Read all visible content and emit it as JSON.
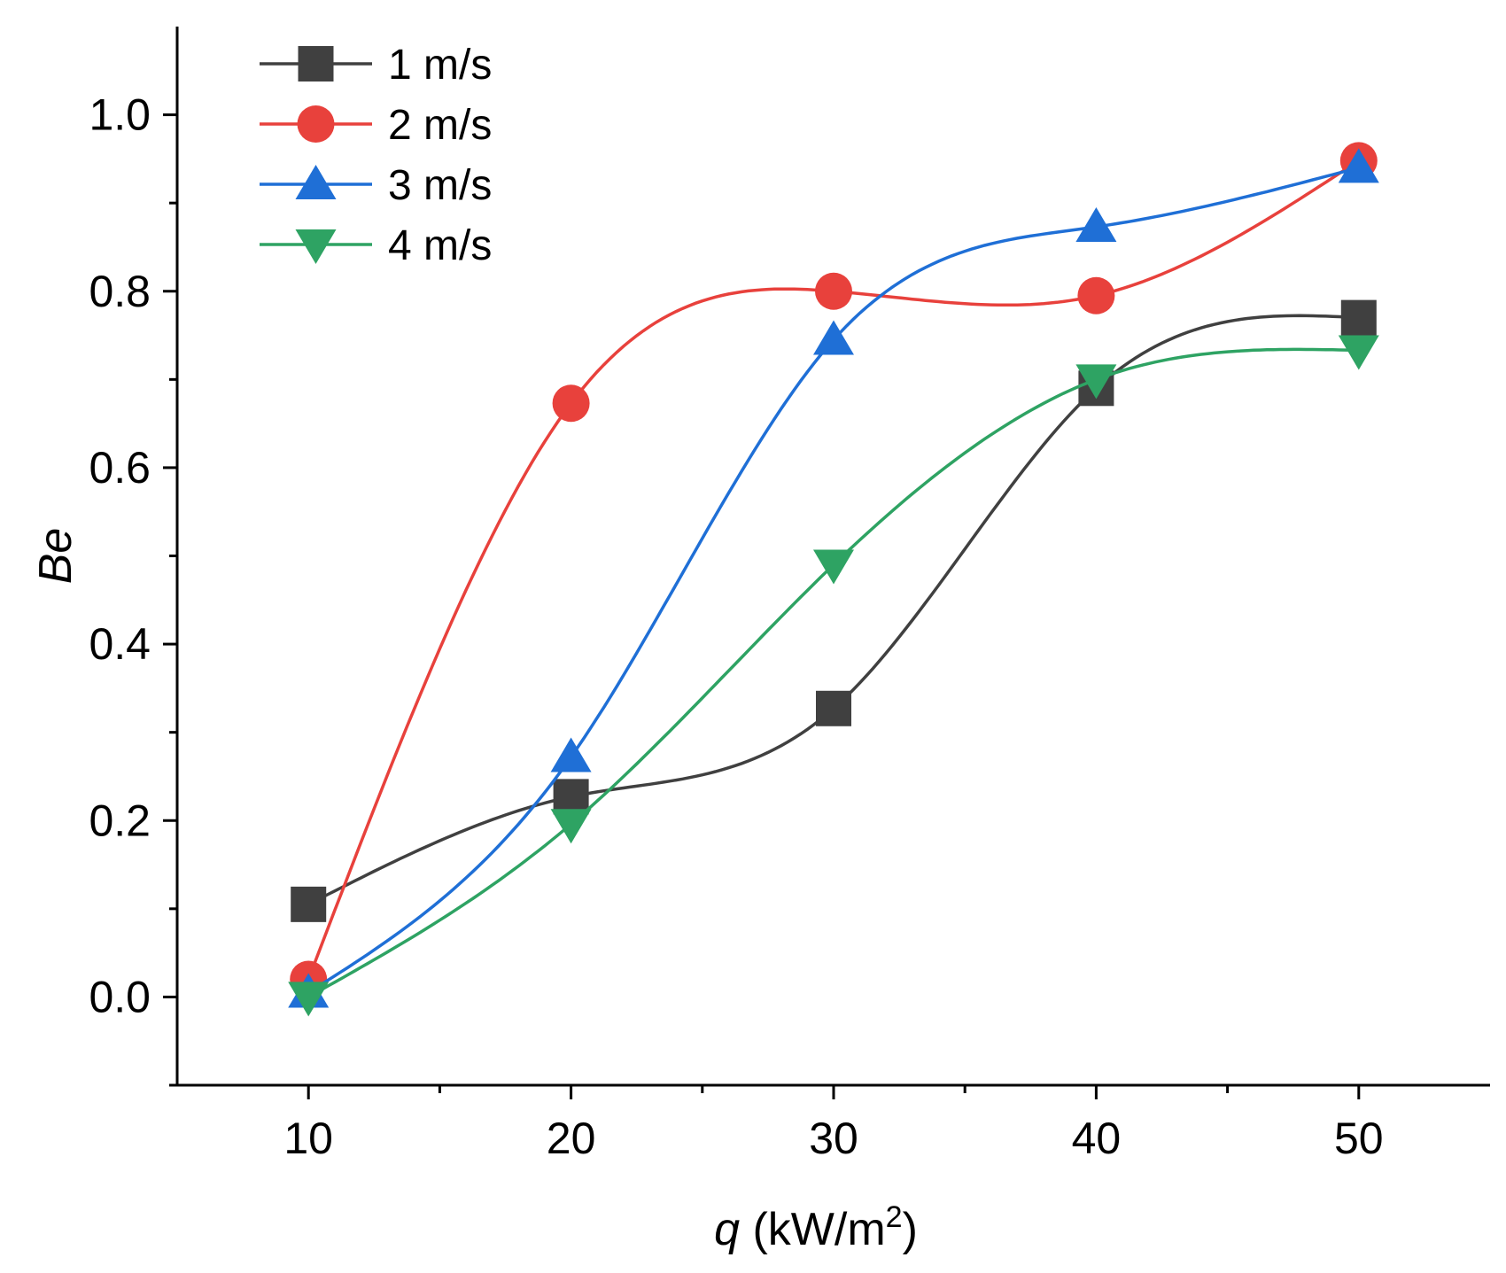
{
  "chart_data": {
    "type": "line",
    "title": "",
    "xlabel": {
      "var": "q",
      "unit_prefix": "kW/m",
      "unit_exp": "2",
      "open": " (",
      "close": ")"
    },
    "ylabel": "Be",
    "xlim": [
      5,
      55
    ],
    "ylim": [
      -0.1,
      1.1
    ],
    "x_ticks": [
      10,
      20,
      30,
      40,
      50
    ],
    "x_tick_labels": [
      "10",
      "20",
      "30",
      "40",
      "50"
    ],
    "x_minor_ticks": [
      15,
      25,
      35,
      45
    ],
    "y_ticks": [
      0.0,
      0.2,
      0.4,
      0.6,
      0.8,
      1.0
    ],
    "y_tick_labels": [
      "0.0",
      "0.2",
      "0.4",
      "0.6",
      "0.8",
      "1.0"
    ],
    "y_minor_ticks": [
      -0.1,
      0.1,
      0.3,
      0.5,
      0.7,
      0.9
    ],
    "legend_position": "top-left",
    "x": [
      10,
      20,
      30,
      40,
      50
    ],
    "series": [
      {
        "name": "1 m/s",
        "marker": "square",
        "color": "#404040",
        "values": [
          0.105,
          0.227,
          0.327,
          0.69,
          0.77
        ]
      },
      {
        "name": "2 m/s",
        "marker": "circle",
        "color": "#e8413c",
        "values": [
          0.02,
          0.673,
          0.8,
          0.795,
          0.948
        ]
      },
      {
        "name": "3 m/s",
        "marker": "triangle-up",
        "color": "#1f6fd6",
        "values": [
          0.005,
          0.272,
          0.745,
          0.873,
          0.94
        ]
      },
      {
        "name": "4 m/s",
        "marker": "triangle-down",
        "color": "#2ea363",
        "values": [
          0.0,
          0.196,
          0.49,
          0.7,
          0.733
        ]
      }
    ]
  }
}
